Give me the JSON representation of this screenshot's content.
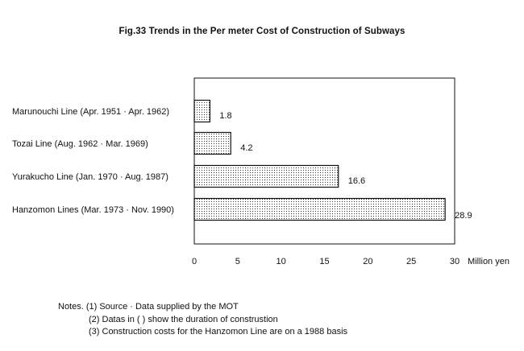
{
  "title": "Fig.33  Trends in the Per meter Cost of Construction of Subways",
  "chart_data": {
    "type": "bar",
    "orientation": "horizontal",
    "title": "Fig.33  Trends in the Per meter Cost of Construction of Subways",
    "categories": [
      "Marunouchi Line (Apr. 1951 · Apr. 1962)",
      "Tozai Line (Aug. 1962 · Mar. 1969)",
      "Yurakucho Line (Jan. 1970 · Aug. 1987)",
      "Hanzomon Lines (Mar. 1973 · Nov. 1990)"
    ],
    "values": [
      1.8,
      4.2,
      16.6,
      28.9
    ],
    "value_labels": [
      "1.8",
      "4.2",
      "16.6",
      "28.9"
    ],
    "xlim": [
      0,
      30
    ],
    "xticks": [
      0,
      5,
      10,
      15,
      20,
      25,
      30
    ],
    "xlabel": "Million yen",
    "bar_fill": "dotted",
    "grid": false
  },
  "notes": [
    "Notes. (1) Source · Data supplied by the MOT",
    "(2) Datas in (   ) show the duration of construstion",
    "(3) Construction costs for the Hanzomon Line are on a 1988 basis"
  ]
}
